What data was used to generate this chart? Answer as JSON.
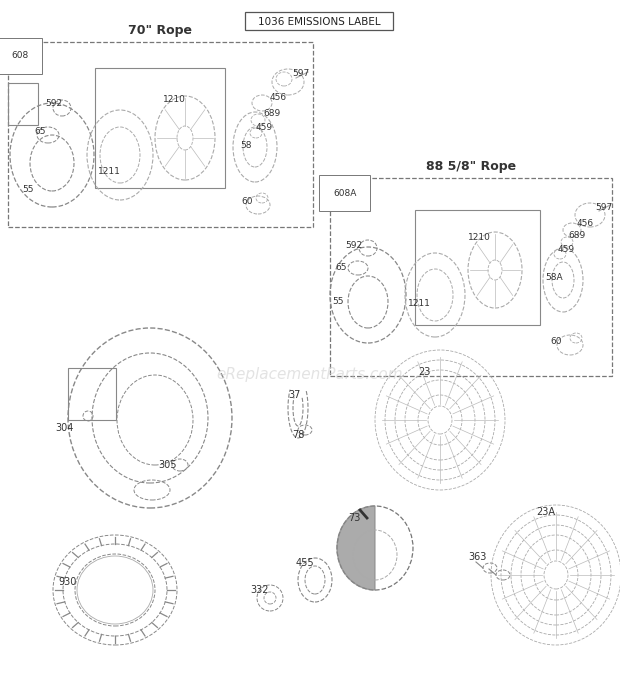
{
  "bg_color": "#ffffff",
  "title": "1036 EMISSIONS LABEL",
  "watermark": "eReplacementParts.com",
  "s1_title": "70\" Rope",
  "s1_label": "608",
  "s2_title": "88 5/8\" Rope",
  "s2_label": "608A",
  "line_color": "#999999",
  "dark_line": "#555555",
  "text_color": "#333333"
}
